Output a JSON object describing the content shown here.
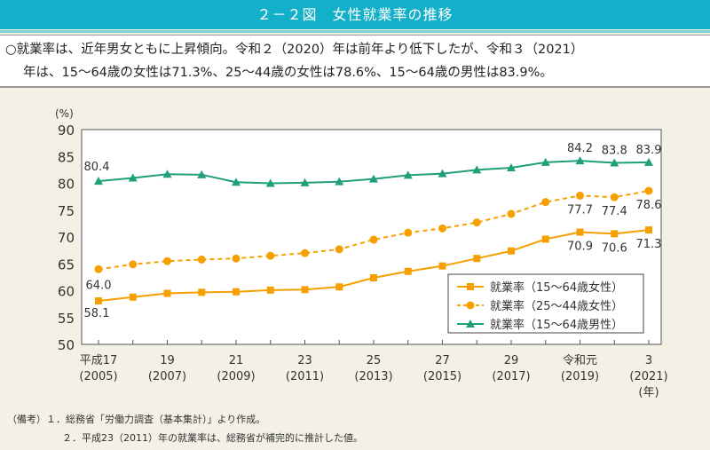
{
  "title": "２－２図　女性就業率の推移",
  "summary": {
    "line1": "○就業率は、近年男女ともに上昇傾向。令和２（2020）年は前年より低下したが、令和３（2021）",
    "line2": "年は、15～64歳の女性は71.3%、25～44歳の女性は78.6%、15～64歳の男性は83.9%。"
  },
  "chart_data": {
    "type": "line",
    "ylabel": "(%)",
    "xlabel": "(年)",
    "ylim": [
      50,
      90
    ],
    "yticks": [
      50,
      55,
      60,
      65,
      70,
      75,
      80,
      85,
      90
    ],
    "x": [
      2005,
      2006,
      2007,
      2008,
      2009,
      2010,
      2011,
      2012,
      2013,
      2014,
      2015,
      2016,
      2017,
      2018,
      2019,
      2020,
      2021
    ],
    "xtick_labels": [
      {
        "x": 2005,
        "era": "平成17",
        "year": "(2005)"
      },
      {
        "x": 2007,
        "era": "19",
        "year": "(2007)"
      },
      {
        "x": 2009,
        "era": "21",
        "year": "(2009)"
      },
      {
        "x": 2011,
        "era": "23",
        "year": "(2011)"
      },
      {
        "x": 2013,
        "era": "25",
        "year": "(2013)"
      },
      {
        "x": 2015,
        "era": "27",
        "year": "(2015)"
      },
      {
        "x": 2017,
        "era": "29",
        "year": "(2017)"
      },
      {
        "x": 2019,
        "era": "令和元",
        "year": "(2019)"
      },
      {
        "x": 2021,
        "era": "3",
        "year": "(2021)"
      }
    ],
    "legend_position": "bottom-right",
    "series": [
      {
        "name": "就業率（15～64歳女性）",
        "color": "#f5a000",
        "marker": "square",
        "dash": false,
        "values": [
          58.1,
          58.8,
          59.5,
          59.7,
          59.8,
          60.1,
          60.2,
          60.7,
          62.4,
          63.6,
          64.6,
          66.0,
          67.4,
          69.6,
          70.9,
          70.6,
          71.3
        ],
        "labels": [
          {
            "x": 2005,
            "text": "58.1"
          },
          {
            "x": 2019,
            "text": "70.9"
          },
          {
            "x": 2020,
            "text": "70.6"
          },
          {
            "x": 2021,
            "text": "71.3"
          }
        ]
      },
      {
        "name": "就業率（25～44歳女性）",
        "color": "#f5a000",
        "marker": "circle",
        "dash": true,
        "values": [
          64.0,
          64.9,
          65.5,
          65.8,
          66.0,
          66.5,
          67.0,
          67.7,
          69.5,
          70.8,
          71.6,
          72.7,
          74.3,
          76.5,
          77.7,
          77.4,
          78.6
        ],
        "labels": [
          {
            "x": 2005,
            "text": "64.0"
          },
          {
            "x": 2019,
            "text": "77.7"
          },
          {
            "x": 2020,
            "text": "77.4"
          },
          {
            "x": 2021,
            "text": "78.6"
          }
        ]
      },
      {
        "name": "就業率（15～64歳男性）",
        "color": "#1f9f7a",
        "marker": "triangle",
        "dash": false,
        "values": [
          80.4,
          81.0,
          81.7,
          81.6,
          80.2,
          80.0,
          80.1,
          80.3,
          80.8,
          81.5,
          81.8,
          82.5,
          82.9,
          83.9,
          84.2,
          83.8,
          83.9
        ],
        "labels": [
          {
            "x": 2005,
            "text": "80.4"
          },
          {
            "x": 2019,
            "text": "84.2"
          },
          {
            "x": 2020,
            "text": "83.8"
          },
          {
            "x": 2021,
            "text": "83.9"
          }
        ]
      }
    ]
  },
  "notes": {
    "n1": "（備考）１．総務省「労働力調査（基本集計）」より作成。",
    "n2": "２．平成23（2011）年の就業率は、総務省が補完的に推計した値。"
  }
}
